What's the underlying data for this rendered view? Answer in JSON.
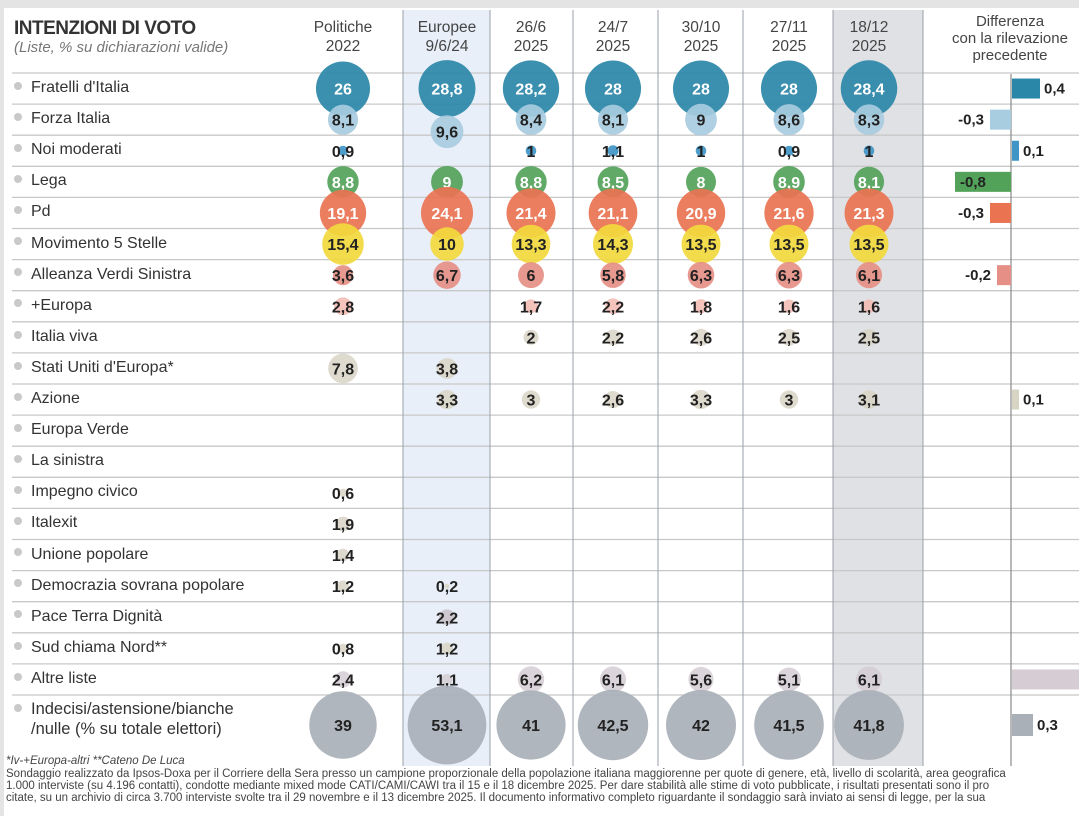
{
  "header": {
    "title": "INTENZIONI DI VOTO",
    "subtitle": "(Liste, % su dichiarazioni valide)",
    "diff_header": [
      "Differenza",
      "con la rilevazione",
      "precedente"
    ]
  },
  "chart_data": {
    "type": "table",
    "title": "INTENZIONI DI VOTO",
    "subtitle": "(Liste, % su dichiarazioni valide)",
    "columns": [
      {
        "line1": "Politiche",
        "line2": "2022"
      },
      {
        "line1": "Europee",
        "line2": "9/6/24"
      },
      {
        "line1": "26/6",
        "line2": "2025"
      },
      {
        "line1": "24/7",
        "line2": "2025"
      },
      {
        "line1": "30/10",
        "line2": "2025"
      },
      {
        "line1": "27/11",
        "line2": "2025"
      },
      {
        "line1": "18/12",
        "line2": "2025"
      }
    ],
    "highlight_columns": {
      "europee": 1,
      "latest": 6
    },
    "rows": [
      {
        "party": "Fratelli d'Italia",
        "color": "#2b87a8",
        "values": [
          26,
          28.8,
          28.2,
          28,
          28,
          28,
          28.4
        ],
        "diff": 0.4
      },
      {
        "party": "Forza Italia",
        "color": "#a8cce0",
        "values": [
          8.1,
          9.6,
          8.4,
          8.1,
          9,
          8.6,
          8.3
        ],
        "diff": -0.3
      },
      {
        "party": "Noi moderati",
        "color": "#3f95c6",
        "values": [
          0.9,
          null,
          1,
          1.1,
          1,
          0.9,
          1
        ],
        "diff": 0.1
      },
      {
        "party": "Lega",
        "color": "#52a259",
        "values": [
          8.8,
          9,
          8.8,
          8.5,
          8,
          8.9,
          8.1
        ],
        "diff": -0.8
      },
      {
        "party": "Pd",
        "color": "#ea7352",
        "values": [
          19.1,
          24.1,
          21.4,
          21.1,
          20.9,
          21.6,
          21.3
        ],
        "diff": -0.3
      },
      {
        "party": "Movimento 5 Stelle",
        "color": "#f2d93d",
        "values": [
          15.4,
          10,
          13.3,
          14.3,
          13.5,
          13.5,
          13.5
        ],
        "diff": null
      },
      {
        "party": "Alleanza Verdi Sinistra",
        "color": "#e58f86",
        "values": [
          3.6,
          6.7,
          6,
          5.8,
          6.3,
          6.3,
          6.1
        ],
        "diff": -0.2
      },
      {
        "party": "+Europa",
        "color": "#f2b8b0",
        "values": [
          2.8,
          null,
          1.7,
          2.2,
          1.8,
          1.6,
          1.6
        ],
        "diff": null
      },
      {
        "party": "Italia viva",
        "color": "#d8d4c4",
        "values": [
          null,
          null,
          2,
          2.2,
          2.6,
          2.5,
          2.5
        ],
        "diff": null
      },
      {
        "party": "Stati Uniti d'Europa*",
        "color": "#d8d4c4",
        "values": [
          7.8,
          3.8,
          null,
          null,
          null,
          null,
          null
        ],
        "diff": null
      },
      {
        "party": "Azione",
        "color": "#d8d4c4",
        "values": [
          null,
          3.3,
          3,
          2.6,
          3.3,
          3,
          3.1
        ],
        "diff": 0.1
      },
      {
        "party": "Europa Verde",
        "color": "#d8d4c4",
        "values": [
          null,
          null,
          null,
          null,
          null,
          null,
          null
        ],
        "diff": null
      },
      {
        "party": "La sinistra",
        "color": "#d8d4c4",
        "values": [
          null,
          null,
          null,
          null,
          null,
          null,
          null
        ],
        "diff": null
      },
      {
        "party": "Impegno civico",
        "color": "#d8d4c4",
        "values": [
          0.6,
          null,
          null,
          null,
          null,
          null,
          null
        ],
        "diff": null
      },
      {
        "party": "Italexit",
        "color": "#d8d4c4",
        "values": [
          1.9,
          null,
          null,
          null,
          null,
          null,
          null
        ],
        "diff": null
      },
      {
        "party": "Unione popolare",
        "color": "#d8d4c4",
        "values": [
          1.4,
          null,
          null,
          null,
          null,
          null,
          null
        ],
        "diff": null
      },
      {
        "party": "Democrazia sovrana popolare",
        "color": "#d8d4c4",
        "values": [
          1.2,
          0.2,
          null,
          null,
          null,
          null,
          null
        ],
        "diff": null
      },
      {
        "party": "Pace Terra Dignità",
        "color": "#c9c0c8",
        "values": [
          null,
          2.2,
          null,
          null,
          null,
          null,
          null
        ],
        "diff": null
      },
      {
        "party": "Sud chiama Nord**",
        "color": "#d8d4c4",
        "values": [
          0.8,
          1.2,
          null,
          null,
          null,
          null,
          null
        ],
        "diff": null
      },
      {
        "party": "Altre liste",
        "color": "#d5ccd4",
        "values": [
          2.4,
          1.1,
          6.2,
          6.1,
          5.6,
          5.1,
          6.1
        ],
        "diff": 1
      },
      {
        "party": "Indecisi/astensione/bianche /nulle (% su totale elettori)",
        "label_lines": [
          "Indecisi/astensione/bianche",
          "/nulle (% su totale elettori)"
        ],
        "color": "#a9b0b8",
        "values": [
          39,
          53.1,
          41,
          42.5,
          42,
          41.5,
          41.8
        ],
        "diff": 0.3
      }
    ],
    "diff_axis": "zero-centered",
    "grid": true
  },
  "footnotes": {
    "legend": "*Iv-+Europa-altri **Cateno De Luca",
    "lines": [
      "Sondaggio realizzato da Ipsos-Doxa per il Corriere della Sera presso un campione proporzionale della popolazione italiana maggiorenne per quote di genere, età, livello di scolarità, area geografica",
      "1.000 interviste (su 4.196 contatti), condotte mediante mixed mode CATI/CAMI/CAWI tra il 15 e il 18 dicembre 2025. Per dare stabilità alle stime di voto pubblicate, i risultati presentati sono il pro",
      "citate, su un archivio di circa 3.700 interviste svolte tra il 29 novembre e il 13 dicembre 2025. Il documento informativo completo riguardante il sondaggio sarà inviato ai sensi di legge, per la sua"
    ]
  }
}
